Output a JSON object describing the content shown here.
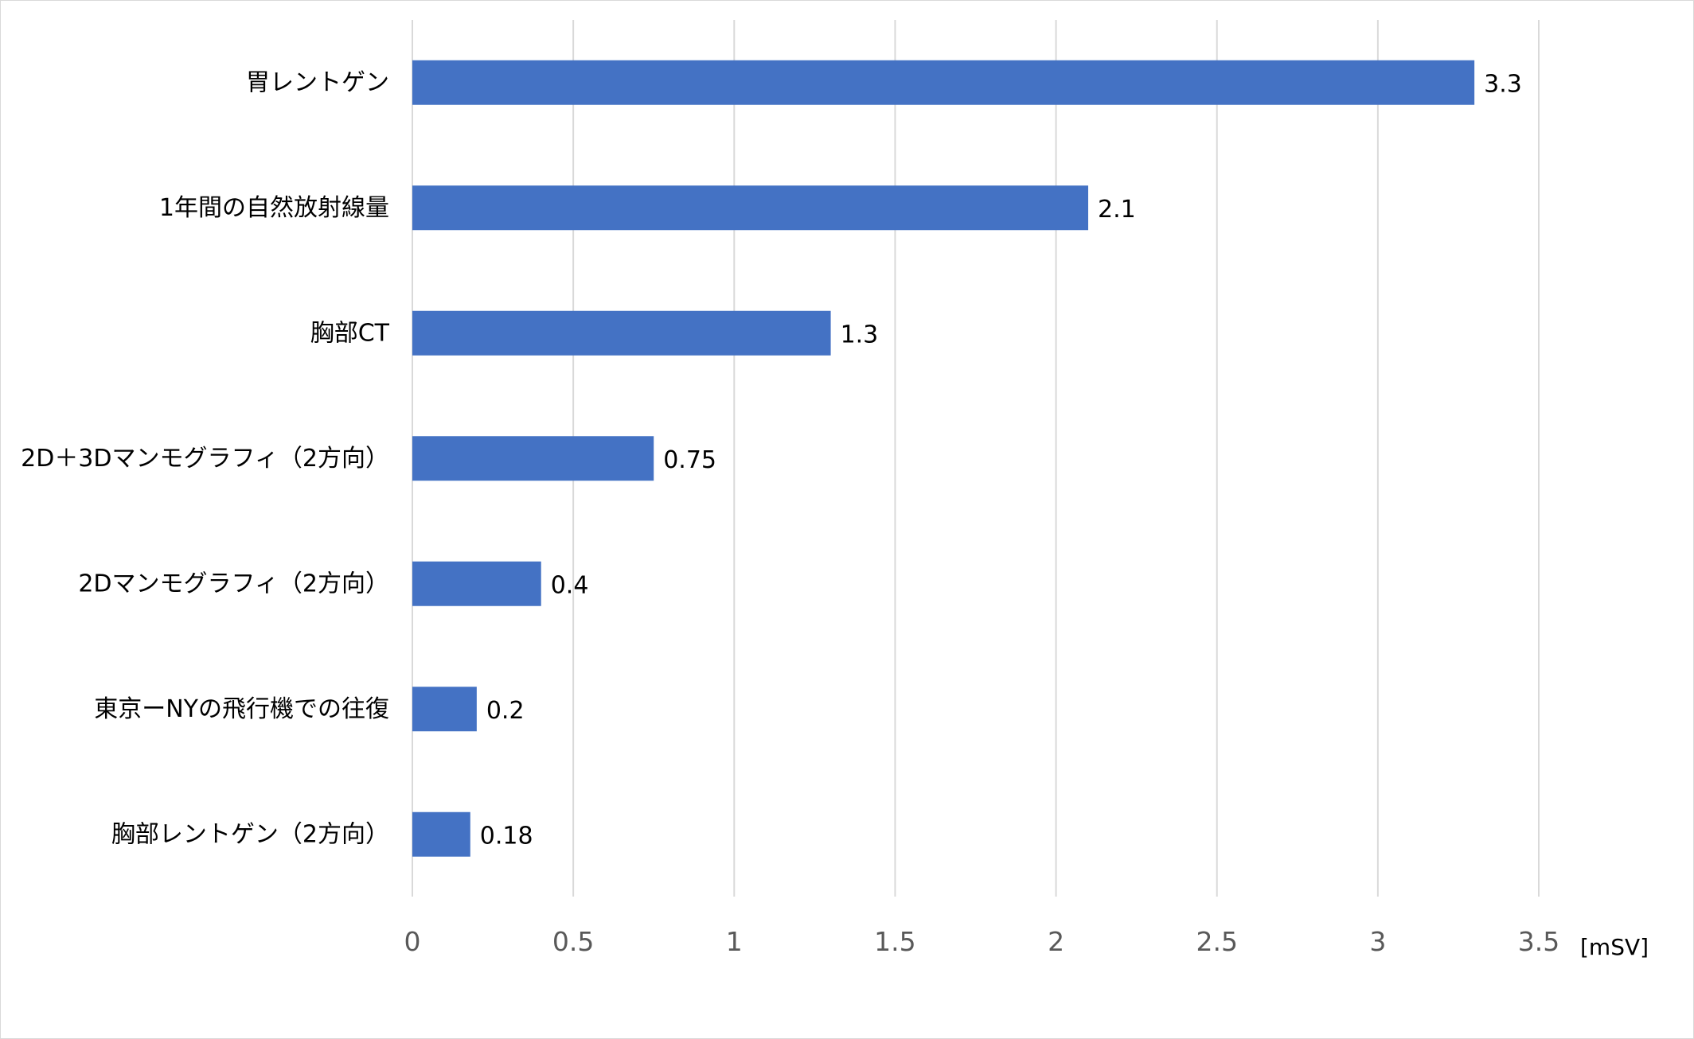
{
  "chart_data": {
    "type": "bar",
    "orientation": "horizontal",
    "categories": [
      "胃レントゲン",
      "1年間の自然放射線量",
      "胸部CT",
      "2D＋3Dマンモグラフィ（2方向）",
      "2Dマンモグラフィ（2方向）",
      "東京ーNYの飛行機での往復",
      "胸部レントゲン（2方向）"
    ],
    "values": [
      3.3,
      2.1,
      1.3,
      0.75,
      0.4,
      0.2,
      0.18
    ],
    "data_labels": [
      "3.3",
      "2.1",
      "1.3",
      "0.75",
      "0.4",
      "0.2",
      "0.18"
    ],
    "xlim": [
      0,
      3.5
    ],
    "x_ticks": [
      "0",
      "0.5",
      "1",
      "1.5",
      "2",
      "2.5",
      "3",
      "3.5"
    ],
    "x_unit": "[mSV]",
    "grid": true,
    "colors": {
      "bar": "#4472c4",
      "grid": "#d9d9d9",
      "tick_text": "#595959"
    }
  }
}
